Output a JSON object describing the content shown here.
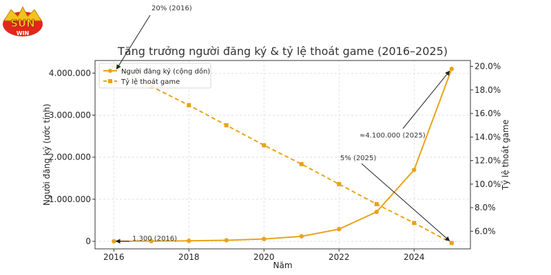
{
  "logo": {
    "text": "SUN WIN",
    "colors": [
      "#f7c21a",
      "#e2261c",
      "#ffffff"
    ]
  },
  "chart_data": {
    "type": "line",
    "title": "Tăng trưởng người đăng ký & tỷ lệ thoát game (2016–2025)",
    "xlabel": "Năm",
    "ylabel_left": "Người đăng ký (ước tính)",
    "ylabel_right": "Tỷ lệ thoát game",
    "x": [
      2016,
      2017,
      2018,
      2019,
      2020,
      2021,
      2022,
      2023,
      2024,
      2025
    ],
    "x_ticks": [
      "2016",
      "2018",
      "2020",
      "2022",
      "2024"
    ],
    "y_left_ticks": [
      "0",
      "1.000.000",
      "2.000.000",
      "3.000.000",
      "4.000.000"
    ],
    "y_right_ticks": [
      "6.0%",
      "8.0%",
      "10.0%",
      "12.0%",
      "14.0%",
      "16.0%",
      "18.0%",
      "20.0%"
    ],
    "grid": true,
    "legend_position": "top-left",
    "series": [
      {
        "name": "Người đăng ký (cộng dồn)",
        "axis": "left",
        "style": "solid",
        "marker": "circle",
        "color": "#e8a317",
        "values": [
          1300,
          5000,
          12000,
          25000,
          55000,
          120000,
          290000,
          700000,
          1700000,
          4100000
        ]
      },
      {
        "name": "Tỷ lệ thoát game",
        "axis": "right",
        "style": "dashed",
        "marker": "square",
        "color": "#e8a317",
        "values": [
          20.0,
          18.3,
          16.7,
          15.0,
          13.3,
          11.7,
          10.0,
          8.3,
          6.7,
          5.0
        ]
      }
    ],
    "annotations": [
      {
        "text": "20% (2016)",
        "x": 2016,
        "value": 20.0,
        "axis": "right"
      },
      {
        "text": "1.300 (2016)",
        "x": 2016,
        "value": 1300,
        "axis": "left"
      },
      {
        "text": "≈4.100.000 (2025)",
        "x": 2025,
        "value": 4100000,
        "axis": "left"
      },
      {
        "text": "5% (2025)",
        "x": 2025,
        "value": 5.0,
        "axis": "right"
      }
    ]
  }
}
